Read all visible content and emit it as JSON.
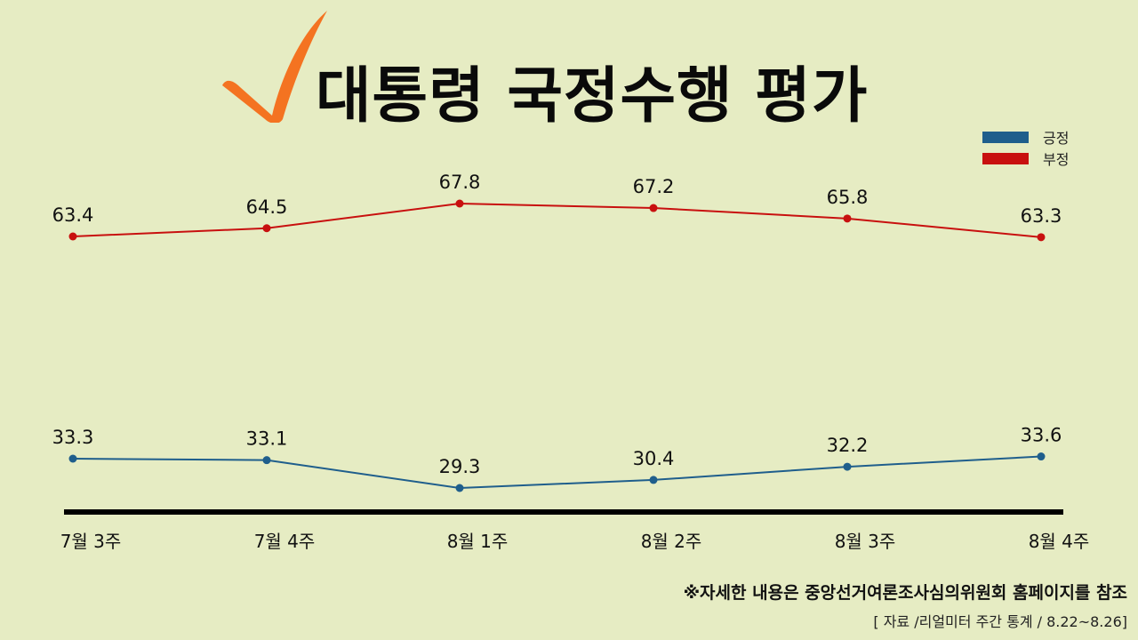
{
  "header": {
    "title": "대통령 국정수행 평가",
    "icon": "checkmark-icon",
    "icon_color": "#F47321"
  },
  "legend": [
    {
      "label": "긍정",
      "color": "#1F5E8C"
    },
    {
      "label": "부정",
      "color": "#C8100F"
    }
  ],
  "footer": {
    "note": "※자세한 내용은 중앙선거여론조사심의위원회 홈페이지를 참조",
    "source": "[ 자료 /리얼미터 주간 통계 / 8.22~8.26]"
  },
  "chart_data": {
    "type": "line",
    "title": "대통령 국정수행 평가",
    "categories": [
      "7월 3주",
      "7월 4주",
      "8월 1주",
      "8월 2주",
      "8월 3주",
      "8월 4주"
    ],
    "series": [
      {
        "name": "긍정",
        "color": "#1F5E8C",
        "values": [
          33.3,
          33.1,
          29.3,
          30.4,
          32.2,
          33.6
        ]
      },
      {
        "name": "부정",
        "color": "#C8100F",
        "values": [
          63.4,
          64.5,
          67.8,
          67.2,
          65.8,
          63.3
        ]
      }
    ],
    "xlabel": "",
    "ylabel": "",
    "grid": false,
    "legend_position": "top-right",
    "data_labels": true
  }
}
